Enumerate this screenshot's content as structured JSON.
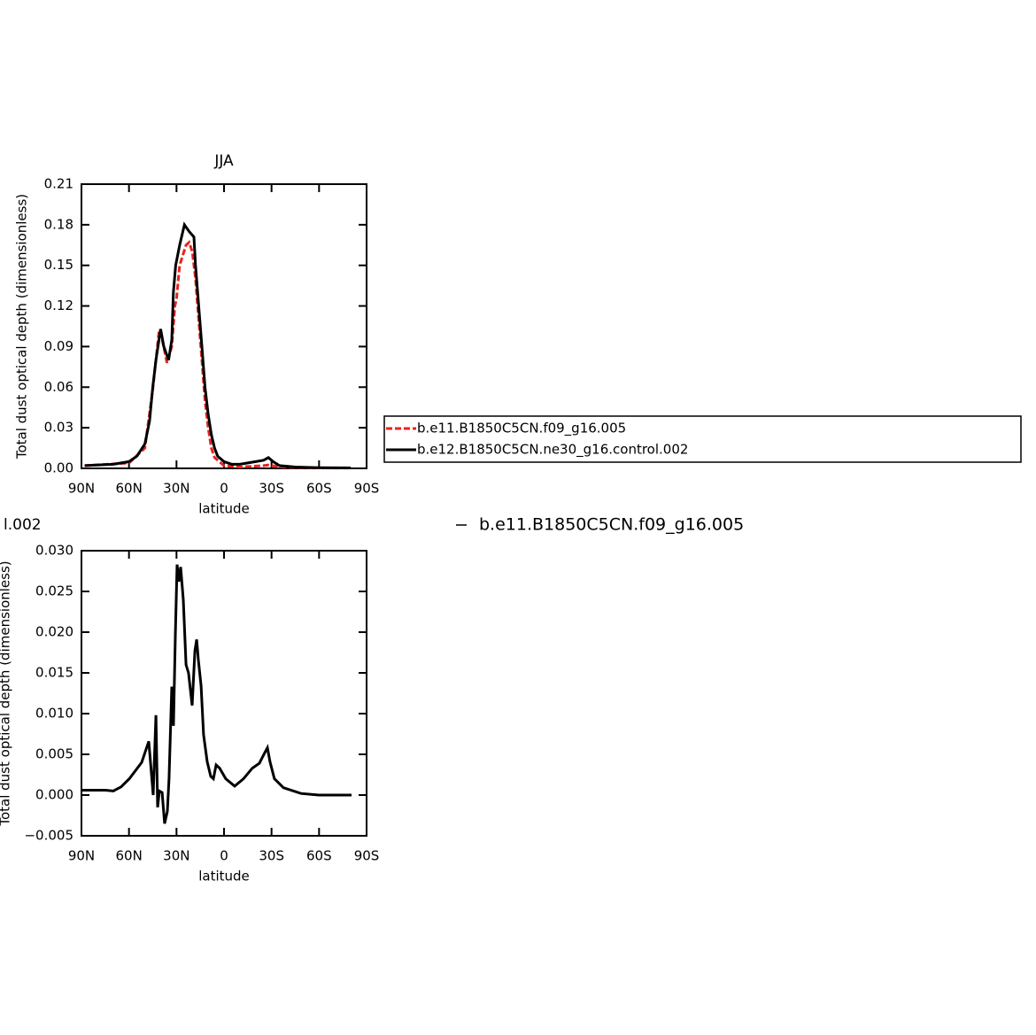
{
  "chart_data": [
    {
      "type": "line",
      "title": "JJA",
      "x_label": "latitude",
      "y_label": "Total dust optical depth (dimensionless)",
      "xlim": [
        90,
        -90
      ],
      "xticks": [
        {
          "value": 90,
          "label": "90N"
        },
        {
          "value": 60,
          "label": "60N"
        },
        {
          "value": 30,
          "label": "30N"
        },
        0,
        {
          "value": -30,
          "label": "30S"
        },
        {
          "value": -60,
          "label": "60S"
        },
        {
          "value": -90,
          "label": "90S"
        }
      ],
      "ylim": [
        0,
        0.21
      ],
      "yticks": [
        {
          "value": 0,
          "label": "0.00"
        },
        {
          "value": 0.03,
          "label": "0.03"
        },
        {
          "value": 0.06,
          "label": "0.06"
        },
        {
          "value": 0.09,
          "label": "0.09"
        },
        {
          "value": 0.12,
          "label": "0.12"
        },
        {
          "value": 0.15,
          "label": "0.15"
        },
        {
          "value": 0.18,
          "label": "0.18"
        },
        {
          "value": 0.21,
          "label": "0.21"
        }
      ],
      "legend": "right",
      "series": [
        {
          "name": "b.e11.B1850C5CN.f09_g16.005",
          "color": "#e8231f",
          "dash": true,
          "x": [
            88,
            60,
            50,
            45,
            41,
            39,
            36,
            33,
            31,
            30,
            28,
            24,
            22,
            20,
            18,
            16,
            14,
            12,
            10,
            8,
            6,
            0,
            -10,
            -25,
            -28,
            -35,
            -60,
            -80
          ],
          "values": [
            0.002,
            0.004,
            0.015,
            0.058,
            0.102,
            0.095,
            0.078,
            0.09,
            0.12,
            0.125,
            0.15,
            0.165,
            0.167,
            0.16,
            0.14,
            0.11,
            0.08,
            0.05,
            0.03,
            0.015,
            0.008,
            0.002,
            0.001,
            0.002,
            0.0025,
            0.001,
            0.0003,
            0.0002
          ]
        },
        {
          "name": "b.e12.B1850C5CN.ne30_g16.control.002",
          "color": "#000000",
          "dash": false,
          "x": [
            88,
            70,
            60,
            55,
            50,
            47,
            45,
            43,
            40,
            38,
            35,
            33,
            32,
            30.5,
            28,
            25,
            22,
            19,
            18,
            16,
            14,
            12,
            10,
            8,
            6,
            4,
            0,
            -5,
            -10,
            -15,
            -20,
            -25,
            -28,
            -31,
            -35,
            -45,
            -60,
            -80
          ],
          "values": [
            0.002,
            0.003,
            0.005,
            0.009,
            0.018,
            0.035,
            0.06,
            0.08,
            0.103,
            0.09,
            0.08,
            0.095,
            0.13,
            0.15,
            0.165,
            0.18,
            0.175,
            0.171,
            0.15,
            0.12,
            0.09,
            0.06,
            0.04,
            0.025,
            0.015,
            0.009,
            0.005,
            0.003,
            0.003,
            0.004,
            0.005,
            0.006,
            0.008,
            0.005,
            0.002,
            0.001,
            0.0005,
            0.0003
          ]
        }
      ]
    },
    {
      "type": "line",
      "title": "l.002",
      "x_label": "latitude",
      "y_label": "Total dust optical depth (dimensionless)",
      "xlim": [
        90,
        -90
      ],
      "xticks": [
        {
          "value": 90,
          "label": "90N"
        },
        {
          "value": 60,
          "label": "60N"
        },
        {
          "value": 30,
          "label": "30N"
        },
        0,
        {
          "value": -30,
          "label": "30S"
        },
        {
          "value": -60,
          "label": "60S"
        },
        {
          "value": -90,
          "label": "90S"
        }
      ],
      "ylim": [
        -0.005,
        0.03
      ],
      "yticks": [
        {
          "value": -0.005,
          "label": "−0.005"
        },
        {
          "value": 0,
          "label": "0.000"
        },
        {
          "value": 0.005,
          "label": "0.005"
        },
        {
          "value": 0.01,
          "label": "0.010"
        },
        {
          "value": 0.015,
          "label": "0.015"
        },
        {
          "value": 0.02,
          "label": "0.020"
        },
        {
          "value": 0.025,
          "label": "0.025"
        },
        {
          "value": 0.03,
          "label": "0.030"
        }
      ],
      "legend": "top-right",
      "series": [
        {
          "name": "b.e11.B1850C5CN.f09_g16.005",
          "color": "#000000",
          "dash": false,
          "x": [
            90,
            74.9,
            70,
            65,
            59.8,
            52,
            47.5,
            46.4,
            44.7,
            43,
            41.9,
            40.8,
            39.1,
            37.5,
            35.8,
            34.7,
            33,
            31.9,
            30.7,
            29.6,
            28.5,
            27.4,
            25.7,
            24,
            22.4,
            20.1,
            18.4,
            17.3,
            16.2,
            14.5,
            12.9,
            10.6,
            8.4,
            6.7,
            5,
            2.8,
            -1.1,
            -6.7,
            -12.3,
            -17.9,
            -22.3,
            -25.7,
            -27.4,
            -29,
            -31.8,
            -37.5,
            -48.6,
            -59.8,
            -80.5
          ],
          "values": [
            0.0006,
            0.0006,
            0.0005,
            0.001,
            0.002,
            0.004,
            0.0066,
            0.004,
            0,
            0.0098,
            -0.0015,
            0.0005,
            0.0003,
            -0.0035,
            -0.002,
            0.002,
            0.0133,
            0.0085,
            0.02,
            0.0283,
            0.0262,
            0.028,
            0.024,
            0.016,
            0.015,
            0.011,
            0.0177,
            0.0191,
            0.0166,
            0.0134,
            0.0074,
            0.0041,
            0.0023,
            0.002,
            0.0037,
            0.0033,
            0.002,
            0.0011,
            0.002,
            0.0033,
            0.0039,
            0.0052,
            0.0058,
            0.0041,
            0.002,
            0.0009,
            0.0002,
            0,
            0
          ]
        }
      ]
    }
  ]
}
